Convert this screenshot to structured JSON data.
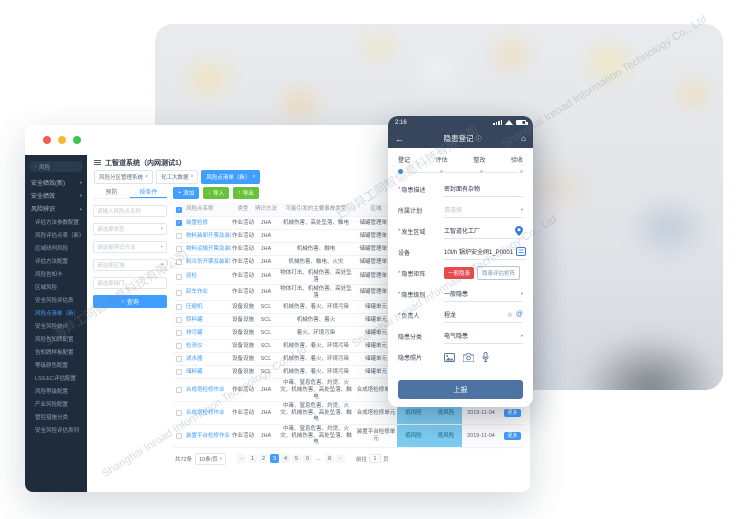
{
  "icons": {
    "search": "○",
    "back": "←",
    "home": "⌂",
    "info": "ⓘ",
    "close": "×",
    "caret": "▾",
    "caret_up": "▴",
    "prev": "‹",
    "next": "›",
    "check": "✓",
    "clear": "⊗",
    "at": "@",
    "plus": "+",
    "down": "↓",
    "up": "↑"
  },
  "watermark": {
    "cn": "上海异工同智信息科技有限公司",
    "en": "Shanghai Inroad Information Technology Co., Ltd"
  },
  "colors": {
    "accent": "#409eff",
    "green": "#67c23a",
    "danger": "#e8494b",
    "risk_badge": "#7ecff2",
    "phone_bar": "#37465c",
    "submit_button": "#4c73a1",
    "sidebar_bg": "#1e2c3c"
  },
  "desktop": {
    "title": "工智道系统（内网测试1）",
    "tags": [
      {
        "label": "风险分区管理系统",
        "active": false
      },
      {
        "label": "化工大数据",
        "active": false
      },
      {
        "label": "风险点清单（新）",
        "active": true
      }
    ],
    "sidebar": {
      "search_value": "风险",
      "items": [
        {
          "label": "安全绩效(新)",
          "kind": "group"
        },
        {
          "label": "安全绩效",
          "kind": "group"
        },
        {
          "label": "风险辨识",
          "kind": "group",
          "expanded": true
        },
        {
          "label": "评估方法参数配置",
          "kind": "child"
        },
        {
          "label": "风险评估点表（新）",
          "kind": "child"
        },
        {
          "label": "区域研判风险",
          "kind": "child"
        },
        {
          "label": "评估方法配置",
          "kind": "child"
        },
        {
          "label": "风险告知卡",
          "kind": "child"
        },
        {
          "label": "区域风险",
          "kind": "child"
        },
        {
          "label": "安全风险评估表",
          "kind": "child"
        },
        {
          "label": "风险点清单（新）",
          "kind": "child",
          "active": true
        },
        {
          "label": "安全风险统计",
          "kind": "child"
        },
        {
          "label": "风险告知牌配置",
          "kind": "child"
        },
        {
          "label": "告知牌样板配置",
          "kind": "child"
        },
        {
          "label": "等级颜色配置",
          "kind": "child"
        },
        {
          "label": "LS/LEC评估配置",
          "kind": "child"
        },
        {
          "label": "风险等级配置",
          "kind": "child"
        },
        {
          "label": "产业风险配置",
          "kind": "child"
        },
        {
          "label": "管控措施分类",
          "kind": "child"
        },
        {
          "label": "安全风险评估表列",
          "kind": "child"
        }
      ]
    },
    "filter": {
      "tabs": [
        "预防",
        "按条件"
      ],
      "inputs": [
        {
          "text": "请输入风险点名称",
          "select": false
        },
        {
          "text": "请选择类型",
          "select": true
        },
        {
          "text": "请选择辨识方法",
          "select": true
        },
        {
          "text": "请选择区域",
          "select": true
        },
        {
          "text": "请选择部门",
          "select": false
        }
      ],
      "search_label": "查询"
    },
    "toolbar": {
      "add": "添加",
      "import": "导入",
      "export": "导出"
    },
    "table": {
      "columns": [
        "",
        "风险点名称",
        "类型",
        "辨识方法",
        "可能引发的主要事故类型",
        "区域",
        "",
        "",
        "",
        ""
      ],
      "rows": [
        {
          "name": "装置检修",
          "type": "作业活动",
          "method": "JHA",
          "accidents": "机械伤害、高处坠落、触电",
          "area": "储罐管理单元",
          "checked": true
        },
        {
          "name": "物料装卸开票及装卸",
          "type": "作业活动",
          "method": "JHA",
          "accidents": "",
          "area": "储罐管理单元"
        },
        {
          "name": "物料运输开票及装卸",
          "type": "作业活动",
          "method": "JHA",
          "accidents": "机械伤害、触电",
          "area": "储罐管理单元"
        },
        {
          "name": "制冷剂开票及装卸",
          "type": "作业活动",
          "method": "JHA",
          "accidents": "机械伤害、触电、火灾",
          "area": "储罐管理单元"
        },
        {
          "name": "巡检",
          "type": "作业活动",
          "method": "JHA",
          "accidents": "物体打击、机械伤害、高处坠落",
          "area": "储罐管理单元"
        },
        {
          "name": "卸车作业",
          "type": "作业活动",
          "method": "JHA",
          "accidents": "物体打击、机械伤害、高处坠落",
          "area": "储罐管理单元"
        },
        {
          "name": "压缩机",
          "type": "设备设施",
          "method": "SCL",
          "accidents": "机械伤害、着火、环境污染",
          "area": "储罐单元"
        },
        {
          "name": "转料罐",
          "type": "设备设施",
          "method": "SCL",
          "accidents": "机械伤害、着火",
          "area": "储罐单元"
        },
        {
          "name": "排污罐",
          "type": "设备设施",
          "method": "SCL",
          "accidents": "着火、环境污染",
          "area": "储罐单元"
        },
        {
          "name": "检测仪",
          "type": "设备设施",
          "method": "SCL",
          "accidents": "机械伤害、着火、环境污染",
          "area": "储罐单元"
        },
        {
          "name": "滤水器",
          "type": "设备设施",
          "method": "SCL",
          "accidents": "机械伤害、着火、环境污染",
          "area": "储罐单元"
        },
        {
          "name": "储料罐",
          "type": "设备设施",
          "method": "SCL",
          "accidents": "机械伤害、着火、环境污染",
          "area": "储罐单元"
        },
        {
          "name": "合成塔检修作业",
          "type": "作业活动",
          "method": "JHA",
          "accidents": "中毒、窒息危害、灼烫、火灾、机械伤害、高处坠落、触电",
          "area": "合成塔检修单元",
          "tall": true,
          "risk1": "低风险",
          "risk2": "低风险",
          "date": "2020-11-04",
          "action": "更多"
        },
        {
          "name": "合成塔检修作业",
          "type": "作业活动",
          "method": "JHA",
          "accidents": "中毒、窒息危害、灼烫、火灾、机械伤害、高处坠落、触电",
          "area": "合成塔检修单元",
          "tall": true,
          "risk1": "低风险",
          "risk2": "低风险",
          "date": "2019-11-04",
          "action": "更多"
        },
        {
          "name": "装置平台检修作业",
          "type": "作业活动",
          "method": "JHA",
          "accidents": "中毒、窒息危害、灼烫、火灾、机械伤害、高处坠落、触电",
          "area": "装置平台检修单元",
          "tall": true,
          "risk1": "低风险",
          "risk2": "低风险",
          "date": "2019-11-04",
          "action": "更多"
        }
      ]
    },
    "pagination": {
      "total": "共72条",
      "per_page": "10条/页",
      "pages": [
        "1",
        "2",
        "3",
        "4",
        "5",
        "6",
        "...",
        "8"
      ],
      "active": "3",
      "goto_prefix": "前往",
      "goto_value": "1",
      "goto_suffix": "页"
    }
  },
  "phone": {
    "status": {
      "time": "2:16"
    },
    "nav": {
      "title": "隐患登记"
    },
    "steps": [
      {
        "label": "登记",
        "active": true
      },
      {
        "label": "评估",
        "active": false
      },
      {
        "label": "整改",
        "active": false
      },
      {
        "label": "验收",
        "active": false
      }
    ],
    "fields": [
      {
        "label": "隐患描述",
        "required": true,
        "type": "text",
        "value": "密封面有杂物"
      },
      {
        "label": "所属计划",
        "required": false,
        "type": "select",
        "value": "请选择",
        "placeholder": true
      },
      {
        "label": "发生区域",
        "required": true,
        "type": "location",
        "value": "工智道化工厂"
      },
      {
        "label": "设备",
        "required": false,
        "type": "device",
        "value": "10t/h 锅炉安全阀1_P0001"
      },
      {
        "label": "隐患矩阵",
        "required": true,
        "type": "matrix",
        "buttons": [
          {
            "label": "一般隐患",
            "style": "danger"
          },
          {
            "label": "隐患评估矩阵",
            "style": "outline"
          }
        ]
      },
      {
        "label": "隐患级别",
        "required": true,
        "type": "select",
        "value": "一般隐患",
        "placeholder": false
      },
      {
        "label": "负责人",
        "required": true,
        "type": "person",
        "value": "程龙"
      },
      {
        "label": "隐患分类",
        "required": false,
        "type": "select",
        "value": "电气隐患",
        "placeholder": false
      },
      {
        "label": "隐患照片",
        "required": false,
        "type": "media"
      }
    ],
    "submit": "上报"
  }
}
